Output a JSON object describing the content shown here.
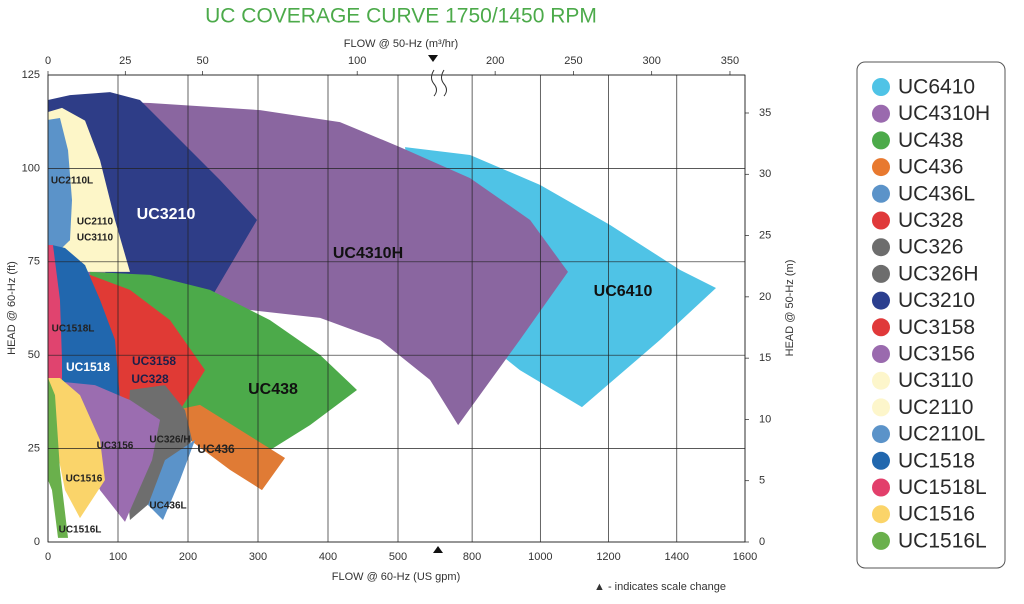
{
  "chart_data": {
    "type": "area",
    "title": "UC COVERAGE CURVE 1750/1450 RPM",
    "title_color": "#4caa4a",
    "x_title": "FLOW @ 60-Hz (US gpm)",
    "x2_title": "FLOW @ 50-Hz (m³/hr)",
    "y_title": "HEAD @ 60-Hz (ft)",
    "y2_title": "HEAD @ 50-Hz (m)",
    "note": "▲ - indicates scale change",
    "xlim": [
      0,
      1600
    ],
    "x_scale_break": [
      500,
      700
    ],
    "xticks": [
      0,
      100,
      200,
      300,
      400,
      500,
      800,
      1000,
      1200,
      1400,
      1600
    ],
    "x2lim": [
      0,
      359.6
    ],
    "x2_scale_break": [
      113.2,
      163.5
    ],
    "x2ticks": [
      0,
      25,
      50,
      100,
      200,
      250,
      300,
      350
    ],
    "ylim": [
      0,
      125
    ],
    "yticks": [
      0,
      25,
      50,
      75,
      100,
      125
    ],
    "y2lim": [
      0,
      38.1
    ],
    "y2ticks": [
      0,
      5,
      10,
      15,
      20,
      25,
      30,
      35
    ],
    "grid": true,
    "legend_position": "right",
    "series": [
      {
        "name": "UC6410",
        "color": "#4fc3e6"
      },
      {
        "name": "UC4310H",
        "color": "#9a6aae"
      },
      {
        "name": "UC438",
        "color": "#4caa4a"
      },
      {
        "name": "UC436",
        "color": "#e8792f"
      },
      {
        "name": "UC436L",
        "color": "#5b93c9"
      },
      {
        "name": "UC328",
        "color": "#e0393a"
      },
      {
        "name": "UC326",
        "color": "#6d6d6d"
      },
      {
        "name": "UC326H",
        "color": "#6d6d6d"
      },
      {
        "name": "UC3210",
        "color": "#2b3f8f"
      },
      {
        "name": "UC3158",
        "color": "#e0393a"
      },
      {
        "name": "UC3156",
        "color": "#9a6aae"
      },
      {
        "name": "UC3110",
        "color": "#fdf6cb"
      },
      {
        "name": "UC2110",
        "color": "#fdf6cb"
      },
      {
        "name": "UC2110L",
        "color": "#5b93c9"
      },
      {
        "name": "UC1518",
        "color": "#2167ae"
      },
      {
        "name": "UC1518L",
        "color": "#e23f6b"
      },
      {
        "name": "UC1516",
        "color": "#fbd469"
      },
      {
        "name": "UC1516L",
        "color": "#6ab04c"
      }
    ],
    "regions": [
      {
        "labels": [
          "UC6410"
        ],
        "color": "#4fc3e6",
        "x": [
          535,
          794,
          999,
          1204,
          1410,
          1515,
          1351,
          1122,
          940,
          794,
          660
        ],
        "y": [
          105.7,
          103.6,
          95.6,
          84.9,
          72.8,
          68.0,
          54.1,
          36.1,
          46.0,
          56.7,
          64.8
        ]
      },
      {
        "labels": [
          "UC4310H"
        ],
        "color": "#8a66a0",
        "x": [
          0,
          145.7,
          302.9,
          417.1,
          510,
          794,
          970,
          1081,
          940,
          759,
          660,
          474.3,
          388.6,
          288.6,
          217.1,
          102.9,
          0
        ],
        "y": [
          118.3,
          117.5,
          115.6,
          112.4,
          105.7,
          97.4,
          86.2,
          72.3,
          54.1,
          31.3,
          43.4,
          54.1,
          60.0,
          62.1,
          64.8,
          67.5,
          70.1
        ]
      },
      {
        "labels": [
          "UC3210"
        ],
        "color": "#2e3d87",
        "x": [
          0,
          31.4,
          88.6,
          131.4,
          188.6,
          245.7,
          298.6,
          231.4,
          145.7,
          88.6,
          45.7,
          17.1,
          0
        ],
        "y": [
          118.3,
          119.6,
          120.4,
          118.3,
          107.6,
          96.9,
          86.2,
          64.8,
          64.8,
          70.1,
          83.5,
          96.9,
          99.6
        ]
      },
      {
        "labels": [
          "UC2110",
          "UC3110"
        ],
        "color": "#fdf6c8",
        "x": [
          0,
          20,
          52.9,
          74.3,
          95.7,
          117.1,
          45.7,
          0
        ],
        "y": [
          115.1,
          116.2,
          112.8,
          102.2,
          86.2,
          72.3,
          72.3,
          75.5
        ]
      },
      {
        "labels": [
          "UC2110L"
        ],
        "color": "#5b93c9",
        "x": [
          0,
          17.1,
          28.6,
          34.3,
          31.4,
          17.1,
          0
        ],
        "y": [
          113.0,
          113.5,
          104.9,
          91.5,
          80.8,
          78.2,
          78.2
        ]
      },
      {
        "labels": [
          "UC438"
        ],
        "color": "#4caa4a",
        "x": [
          60,
          145.7,
          231.4,
          317.1,
          388.6,
          441.4,
          374.3,
          317.1,
          274.3,
          217.1,
          145.7,
          74.3
        ],
        "y": [
          72.3,
          71.5,
          67.5,
          59.4,
          50.1,
          40.7,
          31.3,
          24.6,
          21.9,
          30.0,
          38.0,
          43.4
        ]
      },
      {
        "labels": [
          "UC3158",
          "UC328"
        ],
        "color": "#e03a35",
        "x": [
          17.1,
          60,
          117.1,
          174.3,
          224.3,
          188.6,
          145.7,
          102.9,
          67.1,
          38.6
        ],
        "y": [
          71.5,
          71.5,
          67.5,
          59.4,
          46.0,
          35.3,
          30.0,
          32.7,
          40.7,
          56.7
        ]
      },
      {
        "labels": [
          "UC1518"
        ],
        "color": "#2167ae",
        "x": [
          5.7,
          24.3,
          52.9,
          74.3,
          95.7,
          102.9,
          17.1,
          5.7
        ],
        "y": [
          79.5,
          78.7,
          74.1,
          64.8,
          54.1,
          38.0,
          38.0,
          56.7
        ]
      },
      {
        "labels": [
          "UC1518L"
        ],
        "color": "#e0446f",
        "x": [
          0,
          7.1,
          17.1,
          20,
          20,
          0
        ],
        "y": [
          79.5,
          79.5,
          64.8,
          48.7,
          38.0,
          38.0
        ]
      },
      {
        "labels": [
          "UC436"
        ],
        "color": "#e07b35",
        "x": [
          181.4,
          217.1,
          274.3,
          338.6,
          305.7,
          260,
          202.9,
          160
        ],
        "y": [
          35.3,
          36.7,
          30.0,
          22.5,
          13.9,
          19.3,
          27.3,
          32.7
        ]
      },
      {
        "labels": [
          "UC326/H"
        ],
        "color": "#6e6e6e",
        "x": [
          117.1,
          167.1,
          195.7,
          205.7,
          167.1,
          117.1,
          110
        ],
        "y": [
          40.7,
          42.0,
          35.3,
          27.3,
          13.9,
          5.9,
          19.3
        ]
      },
      {
        "labels": [
          "UC436L"
        ],
        "color": "#5b93c9",
        "x": [
          167.1,
          210,
          188.6,
          164.3,
          142.9
        ],
        "y": [
          21.9,
          27.3,
          16.6,
          5.9,
          9.9
        ]
      },
      {
        "labels": [
          "UC3156"
        ],
        "color": "#9b6db0",
        "x": [
          24.3,
          67.1,
          117.1,
          160,
          148.6,
          110,
          74.3,
          45.7
        ],
        "y": [
          42.8,
          42.0,
          38.0,
          32.7,
          21.9,
          5.4,
          13.9,
          27.3
        ]
      },
      {
        "labels": [
          "UC1516"
        ],
        "color": "#fad46a",
        "x": [
          0,
          17.1,
          45.7,
          74.3,
          81.4,
          45.7,
          24.3,
          10,
          0
        ],
        "y": [
          43.9,
          43.9,
          39.3,
          27.3,
          16.6,
          6.4,
          13.9,
          27.3,
          32.7
        ]
      },
      {
        "labels": [
          "UC1516L"
        ],
        "color": "#6ab04c",
        "x": [
          0,
          10,
          17.1,
          28.6,
          14.3,
          5.7,
          0
        ],
        "y": [
          43.9,
          39.3,
          19.3,
          1.1,
          1.1,
          13.9,
          16.6
        ]
      }
    ]
  }
}
